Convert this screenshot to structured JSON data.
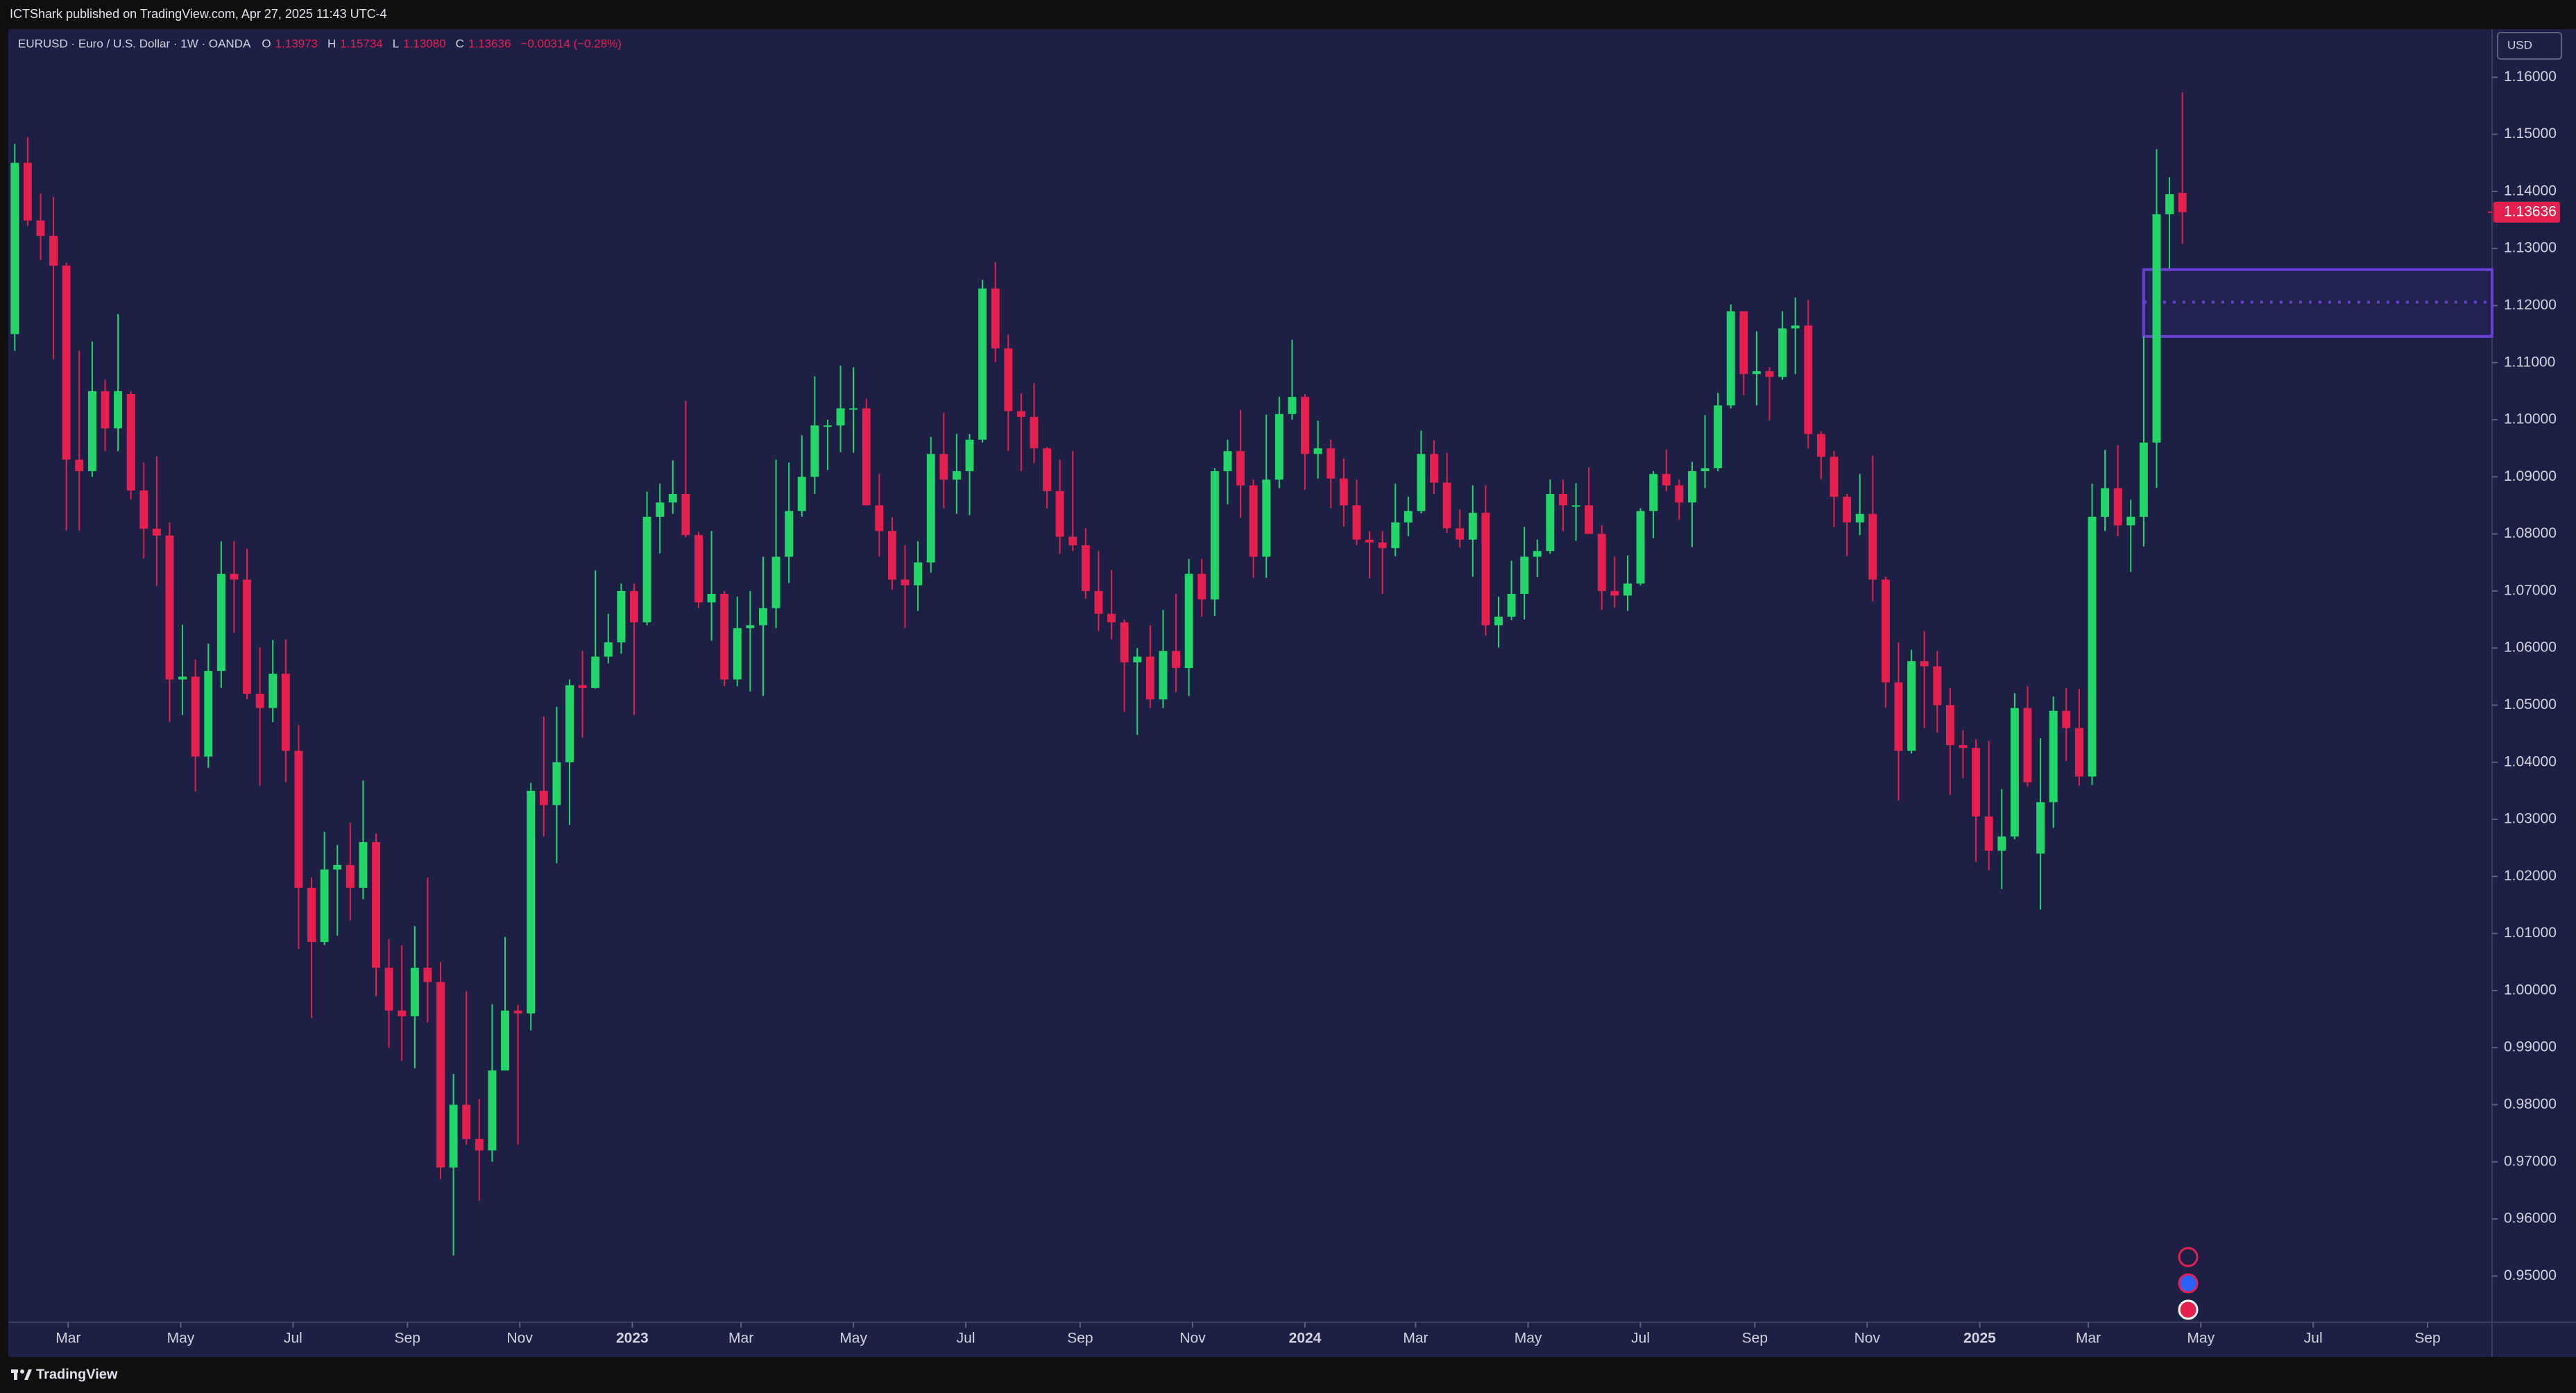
{
  "header": {
    "text": "ICTShark published on TradingView.com, Apr 27, 2025 11:43 UTC-4"
  },
  "footer": {
    "brand": "TradingView"
  },
  "chart_data": {
    "type": "candlestick",
    "legend": {
      "symbol": "EURUSD · Euro / U.S. Dollar · 1W · OANDA",
      "fields": [
        {
          "key": "O",
          "value": "1.13973"
        },
        {
          "key": "H",
          "value": "1.15734"
        },
        {
          "key": "L",
          "value": "1.13080"
        },
        {
          "key": "C",
          "value": "1.13636"
        }
      ],
      "change": "−0.00314 (−0.28%)"
    },
    "currency": "USD",
    "up_color": "#22d66a",
    "down_color": "#e5204f",
    "open": [
      1.115,
      1.145,
      1.1349,
      1.1322,
      1.127,
      1.093,
      1.091,
      1.105,
      1.0985,
      1.1045,
      1.0876,
      1.0809,
      1.0797,
      1.0545,
      1.055,
      1.041,
      1.056,
      1.073,
      1.072,
      1.052,
      1.0495,
      1.0555,
      1.042,
      1.018,
      1.0085,
      1.0212,
      1.022,
      1.018,
      1.026,
      1.004,
      0.9965,
      0.9955,
      1.004,
      1.0015,
      0.969,
      0.98,
      0.974,
      0.972,
      0.986,
      0.9965,
      0.996,
      1.035,
      1.0325,
      1.04,
      1.0535,
      1.053,
      1.0585,
      1.061,
      1.07,
      1.0645,
      1.083,
      1.0855,
      1.087,
      1.0798,
      1.068,
      1.0695,
      1.0545,
      1.0635,
      1.064,
      1.067,
      1.076,
      1.084,
      1.09,
      1.099,
      1.099,
      1.102,
      1.102,
      1.085,
      1.0805,
      1.072,
      1.071,
      1.075,
      1.094,
      1.0895,
      1.091,
      1.0965,
      1.123,
      1.1125,
      1.1015,
      1.1005,
      1.095,
      1.0875,
      1.0795,
      1.078,
      1.07,
      1.066,
      1.0645,
      1.0575,
      1.0585,
      1.051,
      1.0595,
      1.0565,
      1.073,
      1.0685,
      1.091,
      1.0945,
      1.0885,
      1.076,
      1.0895,
      1.101,
      1.104,
      1.094,
      1.095,
      1.0897,
      1.085,
      1.079,
      1.0785,
      1.0775,
      1.082,
      1.084,
      1.094,
      1.089,
      1.081,
      1.079,
      1.0837,
      1.064,
      1.0655,
      1.0695,
      1.076,
      1.077,
      1.087,
      1.085,
      1.085,
      1.08,
      1.07,
      1.0692,
      1.0713,
      1.084,
      1.0905,
      1.0885,
      1.0855,
      1.091,
      1.0915,
      1.1025,
      1.119,
      1.108,
      1.1085,
      1.1075,
      1.116,
      1.1165,
      1.0975,
      1.0935,
      1.0865,
      1.082,
      1.0835,
      1.072,
      1.054,
      1.042,
      1.0577,
      1.0568,
      1.05,
      1.043,
      1.0425,
      1.0305,
      1.0245,
      1.027,
      1.0495,
      1.024,
      1.033,
      1.049,
      1.046,
      1.0375,
      1.083,
      1.088,
      1.0815,
      1.083,
      1.096,
      1.136,
      1.13973
    ],
    "high": [
      1.1483,
      1.1495,
      1.1396,
      1.139,
      1.1275,
      1.1121,
      1.1137,
      1.107,
      1.1185,
      1.105,
      1.0925,
      1.0936,
      1.082,
      1.0641,
      1.058,
      1.0608,
      1.0787,
      1.0787,
      1.0774,
      1.0601,
      1.0614,
      1.0615,
      1.0465,
      1.0198,
      1.0278,
      1.0255,
      1.0294,
      1.0368,
      1.0275,
      1.009,
      1.0079,
      1.0113,
      1.0198,
      1.005,
      0.9854,
      0.9999,
      0.981,
      0.9976,
      1.0094,
      0.9975,
      1.0364,
      1.048,
      1.0497,
      1.0545,
      1.0595,
      1.0736,
      1.066,
      1.0713,
      1.0713,
      1.0874,
      1.0888,
      1.0929,
      1.1033,
      1.0804,
      1.0805,
      1.07,
      1.069,
      1.07,
      1.076,
      1.093,
      1.0925,
      1.0973,
      1.1076,
      1.1,
      1.1095,
      1.1092,
      1.1037,
      1.0905,
      1.0829,
      1.078,
      1.0787,
      1.097,
      1.1012,
      1.0975,
      1.0975,
      1.1245,
      1.1276,
      1.1149,
      1.1046,
      1.1064,
      1.0952,
      1.093,
      1.0945,
      1.081,
      1.077,
      1.0737,
      1.065,
      1.06,
      1.064,
      1.0667,
      1.0695,
      1.0756,
      1.0756,
      1.0915,
      1.0965,
      1.1017,
      1.0895,
      1.1009,
      1.104,
      1.114,
      1.1045,
      1.0998,
      1.0965,
      1.0932,
      1.0895,
      1.0805,
      1.0805,
      1.0888,
      1.0865,
      1.0981,
      1.0964,
      1.0942,
      1.0843,
      1.0885,
      1.0885,
      1.069,
      1.0753,
      1.0812,
      1.079,
      1.0895,
      1.0895,
      1.0889,
      1.0916,
      1.0815,
      1.076,
      1.0762,
      1.0845,
      1.091,
      1.0948,
      1.0895,
      1.0926,
      1.1008,
      1.1047,
      1.1202,
      1.119,
      1.1155,
      1.1092,
      1.119,
      1.1214,
      1.121,
      1.098,
      1.0945,
      1.087,
      1.0905,
      1.0937,
      1.0725,
      1.061,
      1.0597,
      1.063,
      1.0595,
      1.053,
      1.0456,
      1.044,
      1.0437,
      1.0353,
      1.0521,
      1.0533,
      1.0442,
      1.0515,
      1.053,
      1.0528,
      1.0888,
      1.0947,
      1.0955,
      1.086,
      1.1146,
      1.1474,
      1.1425,
      1.15734
    ],
    "low": [
      1.1121,
      1.134,
      1.128,
      1.1106,
      1.0806,
      1.0806,
      1.09,
      1.0945,
      1.0945,
      1.086,
      1.0757,
      1.0709,
      1.0471,
      1.0483,
      1.0349,
      1.039,
      1.053,
      1.0627,
      1.051,
      1.0359,
      1.047,
      1.0365,
      1.0073,
      0.9952,
      1.008,
      1.0096,
      1.0123,
      1.016,
      0.999,
      0.99,
      0.9877,
      0.9864,
      0.9944,
      0.967,
      0.9536,
      0.973,
      0.9632,
      0.97,
      0.986,
      0.973,
      0.993,
      1.027,
      1.0223,
      1.029,
      1.0443,
      1.0529,
      1.0573,
      1.059,
      1.0483,
      1.064,
      1.0766,
      1.0835,
      1.0794,
      1.067,
      1.0613,
      1.0533,
      1.0533,
      1.0524,
      1.0516,
      1.0635,
      1.0714,
      1.083,
      1.087,
      1.0912,
      1.0943,
      1.0942,
      1.085,
      1.076,
      1.0702,
      1.0635,
      1.0665,
      1.0732,
      1.0845,
      1.0835,
      1.0833,
      1.096,
      1.1101,
      1.0945,
      1.091,
      1.0924,
      1.0845,
      1.0765,
      1.077,
      1.0686,
      1.063,
      1.0615,
      1.0488,
      1.0448,
      1.0495,
      1.0495,
      1.0523,
      1.0516,
      1.0655,
      1.0656,
      1.0852,
      1.0828,
      1.0723,
      1.0723,
      1.088,
      1.1,
      1.0877,
      1.0897,
      1.0845,
      1.0813,
      1.078,
      1.0722,
      1.0695,
      1.0761,
      1.0796,
      1.0836,
      1.087,
      1.0802,
      1.0776,
      1.0725,
      1.0622,
      1.0601,
      1.0649,
      1.065,
      1.0724,
      1.0765,
      1.0805,
      1.0788,
      1.08,
      1.0667,
      1.0671,
      1.0665,
      1.071,
      1.0792,
      1.0875,
      1.0825,
      1.0777,
      1.088,
      1.091,
      1.102,
      1.1043,
      1.1025,
      1.0999,
      1.107,
      1.108,
      1.095,
      1.0896,
      1.0812,
      1.0761,
      1.0798,
      1.0682,
      1.0496,
      1.0333,
      1.0415,
      1.046,
      1.0452,
      1.0343,
      1.0372,
      1.0225,
      1.0211,
      1.0178,
      1.0265,
      1.0358,
      1.0142,
      1.0285,
      1.0402,
      1.0359,
      1.036,
      1.0805,
      1.0796,
      1.0733,
      1.0778,
      1.0881,
      1.1265,
      1.1308
    ],
    "close": [
      1.145,
      1.1349,
      1.1322,
      1.127,
      1.093,
      1.091,
      1.105,
      1.0985,
      1.105,
      1.0876,
      1.0809,
      1.0797,
      1.0545,
      1.055,
      1.041,
      1.056,
      1.073,
      1.072,
      1.052,
      1.0495,
      1.0555,
      1.042,
      1.018,
      1.0085,
      1.0212,
      1.022,
      1.018,
      1.026,
      1.004,
      0.9965,
      0.9955,
      1.004,
      1.0015,
      0.969,
      0.98,
      0.974,
      0.972,
      0.986,
      0.9965,
      0.996,
      1.035,
      1.0325,
      1.04,
      1.0535,
      1.053,
      1.0585,
      1.061,
      1.07,
      1.0645,
      1.083,
      1.0855,
      1.087,
      1.0798,
      1.068,
      1.0695,
      1.0545,
      1.0635,
      1.064,
      1.067,
      1.076,
      1.084,
      1.09,
      1.099,
      1.099,
      1.102,
      1.102,
      1.085,
      1.0805,
      1.072,
      1.071,
      1.075,
      1.094,
      1.0895,
      1.091,
      1.0965,
      1.123,
      1.1125,
      1.1015,
      1.1005,
      1.095,
      1.0875,
      1.0795,
      1.078,
      1.07,
      1.066,
      1.0645,
      1.0575,
      1.0585,
      1.051,
      1.0595,
      1.0565,
      1.073,
      1.0685,
      1.091,
      1.0945,
      1.0885,
      1.076,
      1.0895,
      1.101,
      1.104,
      1.094,
      1.095,
      1.0897,
      1.085,
      1.079,
      1.0785,
      1.0775,
      1.082,
      1.084,
      1.094,
      1.089,
      1.081,
      1.079,
      1.0837,
      1.064,
      1.0655,
      1.0695,
      1.076,
      1.077,
      1.087,
      1.085,
      1.085,
      1.08,
      1.07,
      1.0692,
      1.0713,
      1.084,
      1.0905,
      1.0885,
      1.0855,
      1.091,
      1.0915,
      1.1025,
      1.119,
      1.108,
      1.1085,
      1.1075,
      1.116,
      1.1165,
      1.0975,
      1.0935,
      1.0865,
      1.082,
      1.0835,
      1.072,
      1.054,
      1.042,
      1.0577,
      1.0568,
      1.05,
      1.043,
      1.0425,
      1.0305,
      1.0245,
      1.027,
      1.0495,
      1.0365,
      1.033,
      1.049,
      1.046,
      1.0375,
      1.083,
      1.088,
      1.0815,
      1.083,
      1.096,
      1.136,
      1.1395,
      1.13636
    ],
    "xlim": [
      -0.5,
      192
    ],
    "xticks": [
      {
        "value": 4.14,
        "label": "Mar"
      },
      {
        "value": 12.86,
        "label": "May"
      },
      {
        "value": 21.57,
        "label": "Jul"
      },
      {
        "value": 30.43,
        "label": "Sep"
      },
      {
        "value": 39.14,
        "label": "Nov"
      },
      {
        "value": 47.86,
        "label": "2023"
      },
      {
        "value": 56.29,
        "label": "Mar"
      },
      {
        "value": 65,
        "label": "May"
      },
      {
        "value": 73.71,
        "label": "Jul"
      },
      {
        "value": 82.57,
        "label": "Sep"
      },
      {
        "value": 91.29,
        "label": "Nov"
      },
      {
        "value": 100,
        "label": "2024"
      },
      {
        "value": 108.57,
        "label": "Mar"
      },
      {
        "value": 117.29,
        "label": "May"
      },
      {
        "value": 126,
        "label": "Jul"
      },
      {
        "value": 134.86,
        "label": "Sep"
      },
      {
        "value": 143.57,
        "label": "Nov"
      },
      {
        "value": 152.29,
        "label": "2025"
      },
      {
        "value": 160.71,
        "label": "Mar"
      },
      {
        "value": 169.43,
        "label": "May"
      },
      {
        "value": 178.14,
        "label": "Jul"
      },
      {
        "value": 187,
        "label": "Sep"
      }
    ],
    "ylim": [
      0.9419,
      1.1683
    ],
    "yticks": [
      {
        "value": 0.95,
        "label": "0.95000"
      },
      {
        "value": 0.96,
        "label": "0.96000"
      },
      {
        "value": 0.97,
        "label": "0.97000"
      },
      {
        "value": 0.98,
        "label": "0.98000"
      },
      {
        "value": 0.99,
        "label": "0.99000"
      },
      {
        "value": 1.0,
        "label": "1.00000"
      },
      {
        "value": 1.01,
        "label": "1.01000"
      },
      {
        "value": 1.02,
        "label": "1.02000"
      },
      {
        "value": 1.03,
        "label": "1.03000"
      },
      {
        "value": 1.04,
        "label": "1.04000"
      },
      {
        "value": 1.05,
        "label": "1.05000"
      },
      {
        "value": 1.06,
        "label": "1.06000"
      },
      {
        "value": 1.07,
        "label": "1.07000"
      },
      {
        "value": 1.08,
        "label": "1.08000"
      },
      {
        "value": 1.09,
        "label": "1.09000"
      },
      {
        "value": 1.1,
        "label": "1.10000"
      },
      {
        "value": 1.11,
        "label": "1.11000"
      },
      {
        "value": 1.12,
        "label": "1.12000"
      },
      {
        "value": 1.13,
        "label": "1.13000"
      },
      {
        "value": 1.14,
        "label": "1.14000"
      },
      {
        "value": 1.15,
        "label": "1.15000"
      },
      {
        "value": 1.16,
        "label": "1.16000"
      }
    ],
    "zone": {
      "top": 1.1263,
      "bottom": 1.1146,
      "mid": 1.1206,
      "start": 165,
      "color": "#6b3fd6"
    }
  }
}
